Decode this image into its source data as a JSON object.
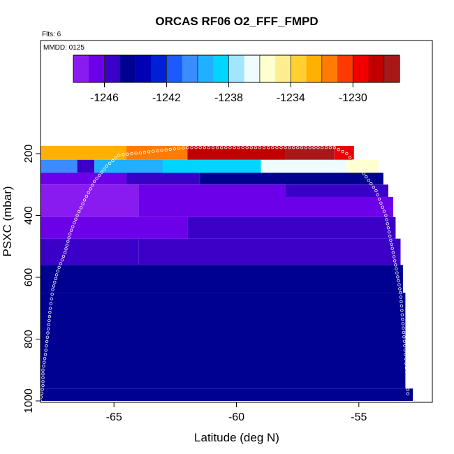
{
  "chart_data": {
    "type": "heatmap",
    "title": "ORCAS RF06 O2_FFF_FMPD",
    "notes": {
      "flights": "Flts: 6",
      "date": "MMDD: 0125"
    },
    "xlabel": "Latitude (deg N)",
    "ylabel": "PSXC (mbar)",
    "xlim": [
      -68,
      -52
    ],
    "ylim": [
      1000,
      150
    ],
    "y_reversed": true,
    "x_ticks": [
      -65,
      -60,
      -55
    ],
    "x_tick_labels": [
      "-65",
      "-60",
      "-55"
    ],
    "y_ticks": [
      200,
      400,
      600,
      800,
      1000
    ],
    "y_tick_labels": [
      "200",
      "400",
      "600",
      "800",
      "1000"
    ],
    "colorbar": {
      "range": [
        -1248,
        -1227
      ],
      "ticks": [
        -1246,
        -1242,
        -1238,
        -1234,
        -1230
      ],
      "tick_labels": [
        "-1246",
        "-1242",
        "-1238",
        "-1234",
        "-1230"
      ],
      "colors": [
        "#8a1bf0",
        "#6c00e8",
        "#3a00c8",
        "#000091",
        "#0000b5",
        "#0020d8",
        "#1a5aff",
        "#3a8cff",
        "#20b0ff",
        "#00d4ff",
        "#a0e6ff",
        "#eefcff",
        "#ffffd0",
        "#ffee90",
        "#ffd030",
        "#ffb000",
        "#ff7c00",
        "#ff3a00",
        "#f00000",
        "#c00000",
        "#a81818"
      ]
    },
    "bands": [
      {
        "p_top": 175,
        "p_bottom": 220,
        "x_from": -68,
        "x_to": -55.2,
        "segments": [
          {
            "x_from": -68.0,
            "x_to": -64.5,
            "value": -1233
          },
          {
            "x_from": -64.5,
            "x_to": -62.0,
            "value": -1232
          },
          {
            "x_from": -62.0,
            "x_to": -58.0,
            "value": -1229
          },
          {
            "x_from": -58.0,
            "x_to": -56.0,
            "value": -1228
          },
          {
            "x_from": -56.0,
            "x_to": -55.2,
            "value": -1230
          }
        ]
      },
      {
        "p_top": 220,
        "p_bottom": 262,
        "x_from": -68,
        "x_to": -54.2,
        "segments": [
          {
            "x_from": -68.0,
            "x_to": -66.5,
            "value": -1241
          },
          {
            "x_from": -66.5,
            "x_to": -65.8,
            "value": -1246
          },
          {
            "x_from": -65.8,
            "x_to": -63.0,
            "value": -1240
          },
          {
            "x_from": -63.0,
            "x_to": -59.0,
            "value": -1239
          },
          {
            "x_from": -59.0,
            "x_to": -55.5,
            "value": -1237
          },
          {
            "x_from": -55.5,
            "x_to": -54.2,
            "value": -1236
          }
        ]
      },
      {
        "p_top": 262,
        "p_bottom": 300,
        "x_from": -68,
        "x_to": -54.0,
        "segments": [
          {
            "x_from": -68.0,
            "x_to": -64.5,
            "value": -1247
          },
          {
            "x_from": -64.5,
            "x_to": -61.5,
            "value": -1246
          },
          {
            "x_from": -61.5,
            "x_to": -54.0,
            "value": -1245
          }
        ]
      },
      {
        "p_top": 300,
        "p_bottom": 340,
        "x_from": -68,
        "x_to": -53.8,
        "segments": [
          {
            "x_from": -68.0,
            "x_to": -64.0,
            "value": -1248
          },
          {
            "x_from": -64.0,
            "x_to": -58.0,
            "value": -1247
          },
          {
            "x_from": -58.0,
            "x_to": -53.8,
            "value": -1246
          }
        ]
      },
      {
        "p_top": 340,
        "p_bottom": 405,
        "x_from": -68,
        "x_to": -53.6,
        "segments": [
          {
            "x_from": -68.0,
            "x_to": -64.0,
            "value": -1248
          },
          {
            "x_from": -64.0,
            "x_to": -53.6,
            "value": -1247
          }
        ]
      },
      {
        "p_top": 405,
        "p_bottom": 475,
        "x_from": -68,
        "x_to": -53.5,
        "segments": [
          {
            "x_from": -68.0,
            "x_to": -62.0,
            "value": -1247
          },
          {
            "x_from": -62.0,
            "x_to": -53.5,
            "value": -1246
          }
        ]
      },
      {
        "p_top": 475,
        "p_bottom": 560,
        "x_from": -68,
        "x_to": -53.3,
        "segments": [
          {
            "x_from": -68.0,
            "x_to": -64.0,
            "value": -1246
          },
          {
            "x_from": -64.0,
            "x_to": -53.3,
            "value": -1245.5
          }
        ]
      },
      {
        "p_top": 560,
        "p_bottom": 650,
        "x_from": -68,
        "x_to": -53.2,
        "segments": [
          {
            "x_from": -68.0,
            "x_to": -53.2,
            "value": -1245
          }
        ]
      },
      {
        "p_top": 650,
        "p_bottom": 960,
        "x_from": -68,
        "x_to": -53.1,
        "segments": [
          {
            "x_from": -68.0,
            "x_to": -53.1,
            "value": -1245
          }
        ]
      },
      {
        "p_top": 960,
        "p_bottom": 1000,
        "x_from": -68,
        "x_to": -52.8,
        "segments": [
          {
            "x_from": -68.0,
            "x_to": -52.8,
            "value": -1245
          }
        ]
      }
    ],
    "flight_track": [
      {
        "lat": -68.0,
        "p": 1000
      },
      {
        "lat": -67.9,
        "p": 950
      },
      {
        "lat": -67.9,
        "p": 900
      },
      {
        "lat": -67.8,
        "p": 850
      },
      {
        "lat": -67.7,
        "p": 780
      },
      {
        "lat": -67.6,
        "p": 700
      },
      {
        "lat": -67.5,
        "p": 640
      },
      {
        "lat": -67.3,
        "p": 580
      },
      {
        "lat": -67.0,
        "p": 520
      },
      {
        "lat": -66.8,
        "p": 460
      },
      {
        "lat": -66.5,
        "p": 400
      },
      {
        "lat": -66.2,
        "p": 350
      },
      {
        "lat": -65.8,
        "p": 290
      },
      {
        "lat": -65.3,
        "p": 240
      },
      {
        "lat": -64.8,
        "p": 205
      },
      {
        "lat": -62.0,
        "p": 180
      },
      {
        "lat": -58.0,
        "p": 180
      },
      {
        "lat": -56.0,
        "p": 180
      },
      {
        "lat": -55.5,
        "p": 200
      },
      {
        "lat": -55.1,
        "p": 235
      },
      {
        "lat": -54.7,
        "p": 275
      },
      {
        "lat": -54.3,
        "p": 320
      },
      {
        "lat": -53.9,
        "p": 400
      },
      {
        "lat": -53.7,
        "p": 480
      },
      {
        "lat": -53.5,
        "p": 560
      },
      {
        "lat": -53.3,
        "p": 650
      },
      {
        "lat": -53.2,
        "p": 750
      },
      {
        "lat": -53.1,
        "p": 850
      },
      {
        "lat": -53.0,
        "p": 950
      },
      {
        "lat": -53.0,
        "p": 990
      }
    ],
    "legend": "none",
    "grid": false
  }
}
